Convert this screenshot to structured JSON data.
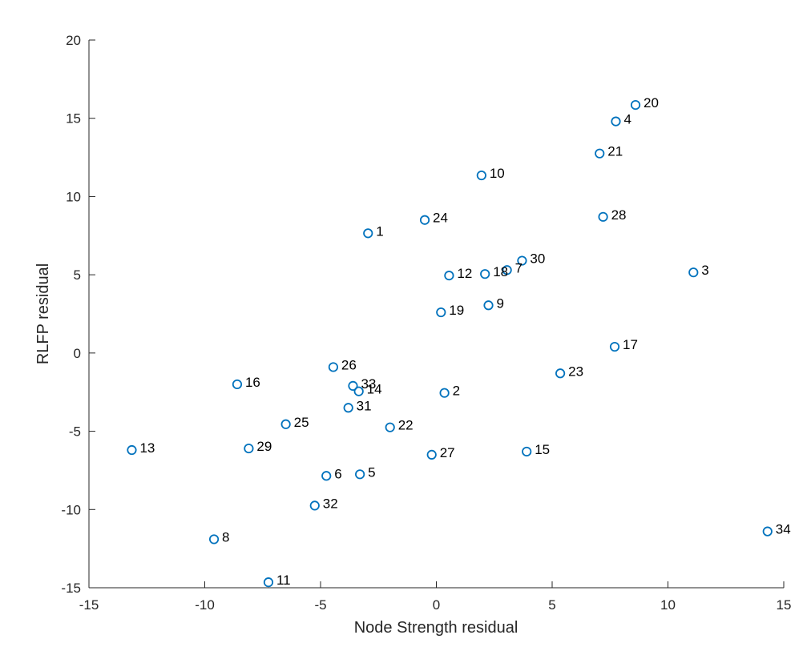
{
  "chart_data": {
    "type": "scatter",
    "title": "",
    "xlabel": "Node Strength residual",
    "ylabel": "RLFP residual",
    "xlim": [
      -15,
      15
    ],
    "ylim": [
      -15,
      20
    ],
    "xticks": [
      -15,
      -10,
      -5,
      0,
      5,
      10,
      15
    ],
    "yticks": [
      -15,
      -10,
      -5,
      0,
      5,
      10,
      15,
      20
    ],
    "grid": false,
    "marker_color": "#0072BD",
    "points": [
      {
        "label": "1",
        "x": -2.95,
        "y": 7.65
      },
      {
        "label": "2",
        "x": 0.35,
        "y": -2.55
      },
      {
        "label": "3",
        "x": 11.1,
        "y": 5.15
      },
      {
        "label": "4",
        "x": 7.75,
        "y": 14.8
      },
      {
        "label": "5",
        "x": -3.3,
        "y": -7.75
      },
      {
        "label": "6",
        "x": -4.75,
        "y": -7.85
      },
      {
        "label": "7",
        "x": 3.05,
        "y": 5.3
      },
      {
        "label": "8",
        "x": -9.6,
        "y": -11.9
      },
      {
        "label": "9",
        "x": 2.25,
        "y": 3.05
      },
      {
        "label": "10",
        "x": 1.95,
        "y": 11.35
      },
      {
        "label": "11",
        "x": -7.25,
        "y": -14.65
      },
      {
        "label": "12",
        "x": 0.55,
        "y": 4.95
      },
      {
        "label": "13",
        "x": -13.15,
        "y": -6.2
      },
      {
        "label": "14",
        "x": -3.35,
        "y": -2.45
      },
      {
        "label": "15",
        "x": 3.9,
        "y": -6.3
      },
      {
        "label": "16",
        "x": -8.6,
        "y": -2.0
      },
      {
        "label": "17",
        "x": 7.7,
        "y": 0.4
      },
      {
        "label": "18",
        "x": 2.1,
        "y": 5.05
      },
      {
        "label": "19",
        "x": 0.2,
        "y": 2.6
      },
      {
        "label": "20",
        "x": 8.6,
        "y": 15.85
      },
      {
        "label": "21",
        "x": 7.05,
        "y": 12.75
      },
      {
        "label": "22",
        "x": -2.0,
        "y": -4.75
      },
      {
        "label": "23",
        "x": 5.35,
        "y": -1.3
      },
      {
        "label": "24",
        "x": -0.5,
        "y": 8.5
      },
      {
        "label": "25",
        "x": -6.5,
        "y": -4.55
      },
      {
        "label": "26",
        "x": -4.45,
        "y": -0.9
      },
      {
        "label": "27",
        "x": -0.2,
        "y": -6.5
      },
      {
        "label": "28",
        "x": 7.2,
        "y": 8.7
      },
      {
        "label": "29",
        "x": -8.1,
        "y": -6.1
      },
      {
        "label": "30",
        "x": 3.7,
        "y": 5.9
      },
      {
        "label": "31",
        "x": -3.8,
        "y": -3.5
      },
      {
        "label": "32",
        "x": -5.25,
        "y": -9.75
      },
      {
        "label": "33",
        "x": -3.6,
        "y": -2.1
      },
      {
        "label": "34",
        "x": 14.3,
        "y": -11.4
      }
    ]
  }
}
